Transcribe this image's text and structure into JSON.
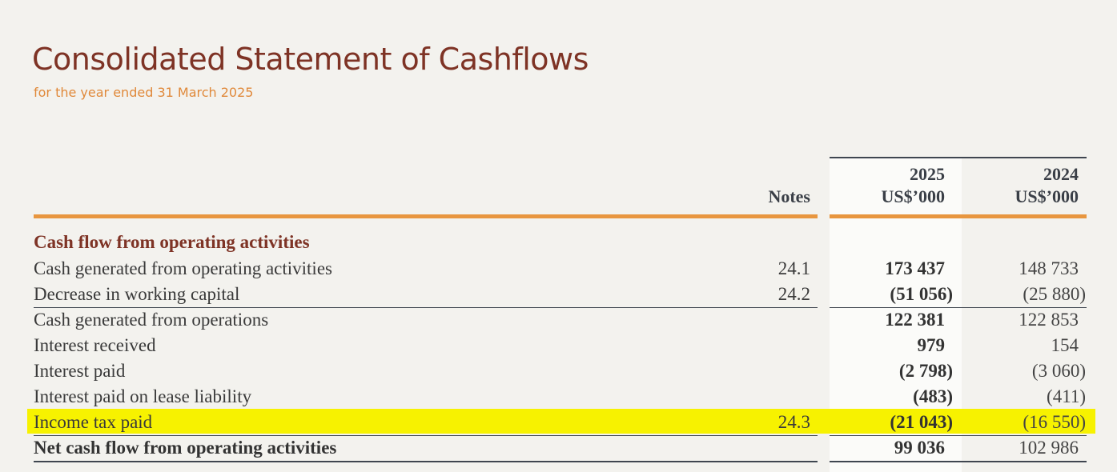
{
  "header": {
    "title": "Consolidated Statement of Cashflows",
    "subtitle": "for the year ended 31 March 2025"
  },
  "table": {
    "columns": {
      "notes": "Notes",
      "year1": "2025",
      "unit1": "US$’000",
      "year2": "2024",
      "unit2": "US$’000"
    },
    "section_title": "Cash flow from operating activities",
    "rows": [
      {
        "label": "Cash generated from operating activities",
        "note": "24.1",
        "v2025": "173 437",
        "v2024": "148 733"
      },
      {
        "label": "Decrease in working capital",
        "note": "24.2",
        "v2025": "(51 056)",
        "v2024": "(25 880)"
      },
      {
        "label": "Cash generated from operations",
        "note": "",
        "v2025": "122 381",
        "v2024": "122 853"
      },
      {
        "label": "Interest received",
        "note": "",
        "v2025": "979",
        "v2024": "154"
      },
      {
        "label": "Interest paid",
        "note": "",
        "v2025": "(2 798)",
        "v2024": "(3 060)"
      },
      {
        "label": "Interest paid on lease liability",
        "note": "",
        "v2025": "(483)",
        "v2024": "(411)"
      },
      {
        "label": "Income tax paid",
        "note": "24.3",
        "v2025": "(21 043)",
        "v2024": "(16 550)",
        "highlighted": true
      },
      {
        "label": "Net cash flow from operating activities",
        "note": "",
        "v2025": "99 036",
        "v2024": "102 986",
        "total": true
      }
    ]
  },
  "colors": {
    "title": "#7e3325",
    "subtitle": "#e0893a",
    "rule_accent": "#e8963f",
    "highlight": "#f7f200",
    "background": "#f3f2ee"
  }
}
